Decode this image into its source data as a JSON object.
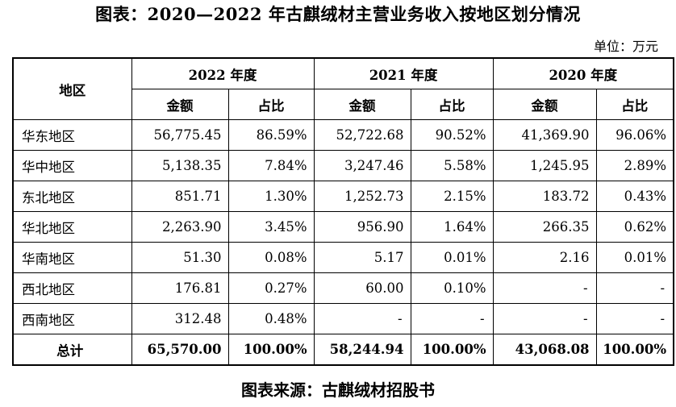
{
  "title": "图表：2020—2022 年古麒绒材主营业务收入按地区划分情况",
  "unit": "单位：万元",
  "table": {
    "region_header": "地区",
    "years": [
      "2022 年度",
      "2021 年度",
      "2020 年度"
    ],
    "sub_headers": [
      "金额",
      "占比"
    ],
    "rows": [
      {
        "region": "华东地区",
        "cells": [
          "56,775.45",
          "86.59%",
          "52,722.68",
          "90.52%",
          "41,369.90",
          "96.06%"
        ]
      },
      {
        "region": "华中地区",
        "cells": [
          "5,138.35",
          "7.84%",
          "3,247.46",
          "5.58%",
          "1,245.95",
          "2.89%"
        ]
      },
      {
        "region": "东北地区",
        "cells": [
          "851.71",
          "1.30%",
          "1,252.73",
          "2.15%",
          "183.72",
          "0.43%"
        ]
      },
      {
        "region": "华北地区",
        "cells": [
          "2,263.90",
          "3.45%",
          "956.90",
          "1.64%",
          "266.35",
          "0.62%"
        ]
      },
      {
        "region": "华南地区",
        "cells": [
          "51.30",
          "0.08%",
          "5.17",
          "0.01%",
          "2.16",
          "0.01%"
        ]
      },
      {
        "region": "西北地区",
        "cells": [
          "176.81",
          "0.27%",
          "60.00",
          "0.10%",
          "-",
          "-"
        ]
      },
      {
        "region": "西南地区",
        "cells": [
          "312.48",
          "0.48%",
          "-",
          "-",
          "-",
          "-"
        ]
      }
    ],
    "total": {
      "region": "总计",
      "cells": [
        "65,570.00",
        "100.00%",
        "58,244.94",
        "100.00%",
        "43,068.08",
        "100.00%"
      ]
    }
  },
  "source": "图表来源：古麒绒材招股书"
}
